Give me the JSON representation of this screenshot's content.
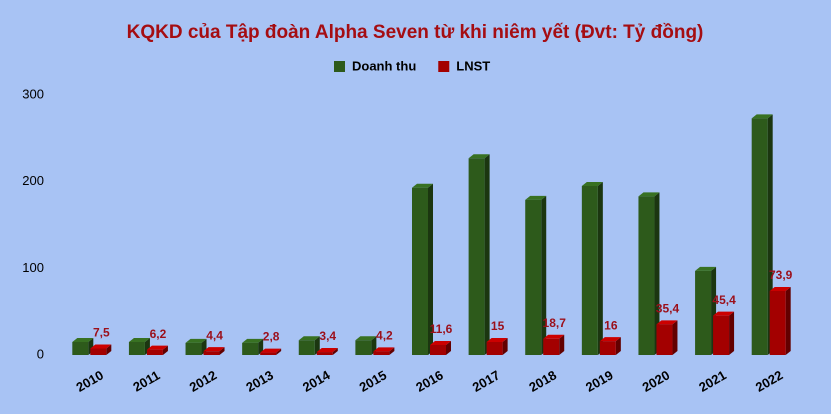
{
  "chart_data": {
    "type": "bar3d",
    "title": "KQKD của Tập đoàn Alpha Seven từ khi niêm yết (Đvt: Tỷ đồng)",
    "categories": [
      "2010",
      "2011",
      "2012",
      "2013",
      "2014",
      "2015",
      "2016",
      "2017",
      "2018",
      "2019",
      "2020",
      "2021",
      "2022"
    ],
    "series": [
      {
        "name": "Doanh thu",
        "color": "#2d5a1b",
        "values": [
          15,
          15,
          14,
          14,
          17,
          17,
          193,
          227,
          179,
          195,
          183,
          97,
          273
        ]
      },
      {
        "name": "LNST",
        "color": "#a30000",
        "values": [
          7.5,
          6.2,
          4.4,
          2.8,
          3.4,
          4.2,
          11.6,
          15,
          18.7,
          16,
          35.4,
          45.4,
          73.9
        ],
        "value_labels": [
          "7,5",
          "6,2",
          "4,4",
          "2,8",
          "3,4",
          "4,2",
          "11,6",
          "15",
          "18,7",
          "16",
          "35,4",
          "45,4",
          "73,9"
        ]
      }
    ],
    "ylim": [
      0,
      300
    ],
    "yticks": [
      0,
      100,
      200,
      300
    ],
    "grid": false,
    "legend": "top"
  }
}
